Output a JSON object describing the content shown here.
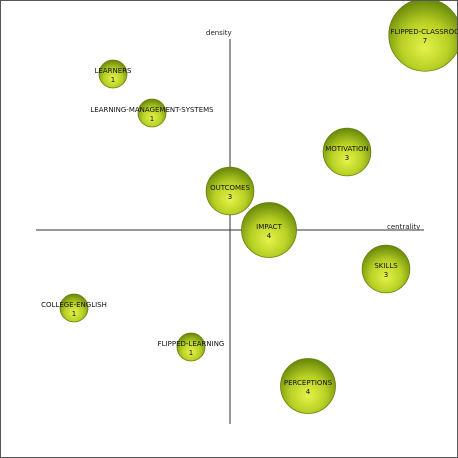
{
  "chart_data": {
    "type": "scatter",
    "subtype": "bubble",
    "title": "",
    "xlabel": "centrality",
    "ylabel": "density",
    "xlim": [
      -5,
      5
    ],
    "ylim": [
      -5,
      5
    ],
    "grid": false,
    "colors": {
      "bubble_fill_light": "#e4f24a",
      "bubble_fill_mid": "#a8c21e",
      "bubble_fill_dark": "#5f7a08",
      "axis": "#333333"
    },
    "points": [
      {
        "label": "FLIPPED-CLASSROO",
        "count": "7",
        "x": 5.0,
        "y": 5.0,
        "size": 7
      },
      {
        "label": "LEARNERS",
        "count": "1",
        "x": -3.0,
        "y": 4.0,
        "size": 1
      },
      {
        "label": "LEARNING-MANAGEMENT-SYSTEMS",
        "count": "1",
        "x": -2.0,
        "y": 3.0,
        "size": 1
      },
      {
        "label": "MOTIVATION",
        "count": "3",
        "x": 3.0,
        "y": 2.0,
        "size": 3
      },
      {
        "label": "OUTCOMES",
        "count": "3",
        "x": 0.0,
        "y": 1.0,
        "size": 3
      },
      {
        "label": "IMPACT",
        "count": "4",
        "x": 1.0,
        "y": 0.0,
        "size": 4
      },
      {
        "label": "SKILLS",
        "count": "3",
        "x": 4.0,
        "y": -1.0,
        "size": 3
      },
      {
        "label": "COLLEGE-ENGLISH",
        "count": "1",
        "x": -4.0,
        "y": -2.0,
        "size": 1
      },
      {
        "label": "FLIPPED-LEARNING",
        "count": "1",
        "x": -1.0,
        "y": -3.0,
        "size": 1
      },
      {
        "label": "PERCEPTIONS",
        "count": "4",
        "x": 2.0,
        "y": -4.0,
        "size": 4
      }
    ]
  }
}
